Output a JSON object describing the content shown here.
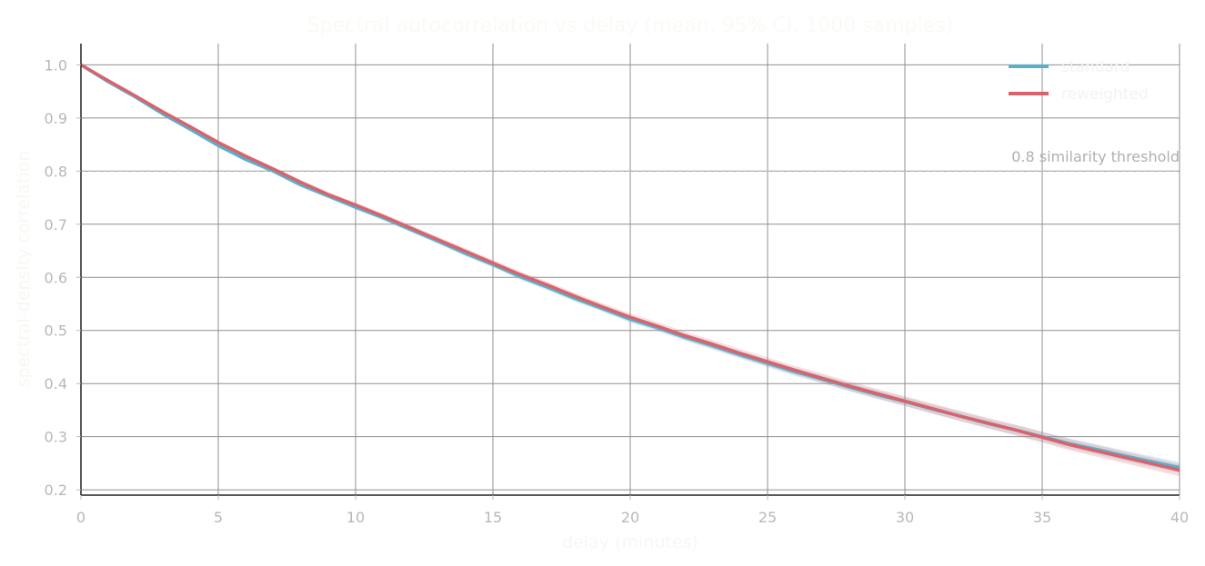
{
  "chart_data": {
    "type": "line",
    "title": "Spectral autocorrelation vs delay (mean, 95% CI, 1000 samples)",
    "xlabel": "delay (minutes)",
    "ylabel": "spectral-density correlation",
    "xlim": [
      0,
      40
    ],
    "ylim": [
      0.19,
      1.04
    ],
    "xticks": [
      0,
      5,
      10,
      15,
      20,
      25,
      30,
      35,
      40
    ],
    "yticks": [
      0.2,
      0.3,
      0.4,
      0.5,
      0.6,
      0.7,
      0.8,
      0.9,
      1.0
    ],
    "grid": true,
    "legend_position": "top-right",
    "reference_line": {
      "y": 0.8,
      "label": "0.8 similarity threshold",
      "color": "#bbbbbb"
    },
    "x": [
      0,
      1,
      2,
      3,
      4,
      5,
      6,
      7,
      8,
      9,
      10,
      11,
      12,
      13,
      14,
      15,
      16,
      17,
      18,
      19,
      20,
      21,
      22,
      23,
      24,
      25,
      26,
      27,
      28,
      29,
      30,
      31,
      32,
      33,
      34,
      35,
      36,
      37,
      38,
      39,
      40
    ],
    "series": [
      {
        "name": "standard",
        "color": "#5aafcc",
        "values": [
          1.0,
          0.968,
          0.939,
          0.907,
          0.878,
          0.848,
          0.822,
          0.8,
          0.774,
          0.753,
          0.732,
          0.712,
          0.69,
          0.668,
          0.645,
          0.624,
          0.601,
          0.581,
          0.56,
          0.541,
          0.521,
          0.505,
          0.487,
          0.471,
          0.454,
          0.438,
          0.422,
          0.408,
          0.393,
          0.379,
          0.366,
          0.352,
          0.339,
          0.325,
          0.313,
          0.3,
          0.287,
          0.276,
          0.264,
          0.253,
          0.242
        ],
        "ci_halfwidth": 0.008
      },
      {
        "name": "reweighted",
        "color": "#d9636c",
        "values": [
          1.0,
          0.97,
          0.941,
          0.911,
          0.883,
          0.854,
          0.828,
          0.804,
          0.779,
          0.756,
          0.736,
          0.715,
          0.693,
          0.671,
          0.649,
          0.627,
          0.605,
          0.585,
          0.564,
          0.544,
          0.525,
          0.508,
          0.49,
          0.474,
          0.457,
          0.441,
          0.425,
          0.41,
          0.395,
          0.381,
          0.367,
          0.353,
          0.339,
          0.326,
          0.313,
          0.299,
          0.285,
          0.273,
          0.261,
          0.249,
          0.237
        ],
        "ci_halfwidth": 0.009
      }
    ]
  }
}
